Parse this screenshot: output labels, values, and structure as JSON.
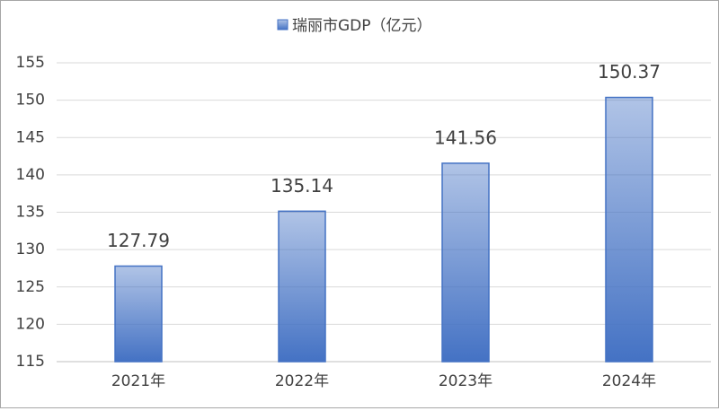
{
  "chart_data": {
    "type": "bar",
    "categories": [
      "2021年",
      "2022年",
      "2023年",
      "2024年"
    ],
    "series": [
      {
        "name": "瑞丽市GDP（亿元）",
        "color": "#4472c4",
        "values": [
          127.79,
          135.14,
          141.56,
          150.37
        ]
      }
    ],
    "ylim": [
      115,
      155
    ],
    "yticks": [
      115,
      120,
      125,
      130,
      135,
      140,
      145,
      150,
      155
    ],
    "grid": true,
    "legend": "top"
  }
}
